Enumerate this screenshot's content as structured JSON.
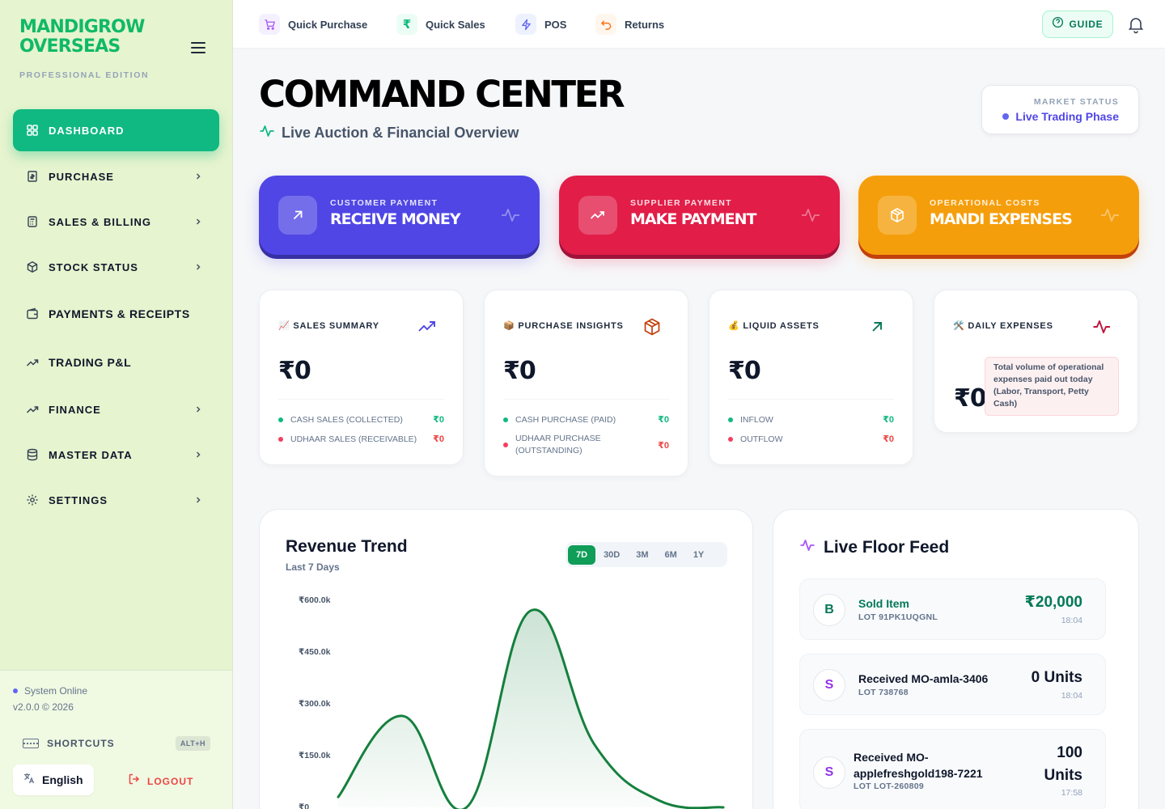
{
  "brand": {
    "line1": "MANDIGROW",
    "line2": "OVERSEAS",
    "edition": "PROFESSIONAL EDITION"
  },
  "sidebar": {
    "items": [
      {
        "label": "DASHBOARD",
        "icon": "grid-icon"
      },
      {
        "label": "PURCHASE",
        "icon": "receipt-icon"
      },
      {
        "label": "SALES & BILLING",
        "icon": "calculator-icon"
      },
      {
        "label": "STOCK STATUS",
        "icon": "box-icon"
      },
      {
        "label": "PAYMENTS & RECEIPTS",
        "icon": "wallet-icon"
      },
      {
        "label": "TRADING P&L",
        "icon": "trend-icon"
      },
      {
        "label": "FINANCE",
        "icon": "trend-icon"
      },
      {
        "label": "MASTER DATA",
        "icon": "database-icon"
      },
      {
        "label": "SETTINGS",
        "icon": "gear-icon"
      }
    ],
    "status": "System Online",
    "version": "v2.0.0 © 2026",
    "shortcuts_label": "SHORTCUTS",
    "shortcuts_key": "ALT+H",
    "language": "English",
    "logout": "LOGOUT"
  },
  "topbar": {
    "quick_actions": [
      {
        "label": "Quick Purchase",
        "icon": "cart-icon",
        "color": "#a855f7"
      },
      {
        "label": "Quick Sales",
        "icon": "rupee-icon",
        "color": "#10b981"
      },
      {
        "label": "POS",
        "icon": "lightning-icon",
        "color": "#6366f1"
      },
      {
        "label": "Returns",
        "icon": "undo-icon",
        "color": "#f97316"
      }
    ],
    "guide": "GUIDE"
  },
  "header": {
    "title": "COMMAND CENTER",
    "subtitle": "Live Auction & Financial Overview",
    "market_label": "MARKET STATUS",
    "market_value": "Live Trading Phase"
  },
  "actions": [
    {
      "kicker": "CUSTOMER PAYMENT",
      "title": "RECEIVE MONEY",
      "icon": "arrow-up-right-icon",
      "color": "#4f46e5"
    },
    {
      "kicker": "SUPPLIER PAYMENT",
      "title": "MAKE PAYMENT",
      "icon": "trend-down-icon",
      "color": "#e11d48"
    },
    {
      "kicker": "OPERATIONAL COSTS",
      "title": "MANDI EXPENSES",
      "icon": "package-icon",
      "color": "#f59e0b"
    }
  ],
  "stats": {
    "sales": {
      "title": "📈 SALES SUMMARY",
      "value": "₹0",
      "rows": [
        {
          "label": "CASH SALES (COLLECTED)",
          "value": "₹0"
        },
        {
          "label": "UDHAAR SALES (RECEIVABLE)",
          "value": "₹0"
        }
      ]
    },
    "purchase": {
      "title": "📦 PURCHASE INSIGHTS",
      "value": "₹0",
      "rows": [
        {
          "label": "CASH PURCHASE (PAID)",
          "value": "₹0"
        },
        {
          "label": "UDHAAR PURCHASE",
          "label2": "(OUTSTANDING)",
          "value": "₹0"
        }
      ]
    },
    "liquid": {
      "title": "💰 LIQUID ASSETS",
      "value": "₹0",
      "rows": [
        {
          "label": "INFLOW",
          "value": "₹0"
        },
        {
          "label": "OUTFLOW",
          "value": "₹0"
        }
      ]
    },
    "expenses": {
      "title": "🛠️ DAILY EXPENSES",
      "value": "₹0",
      "note": "Total volume of operational expenses paid out today (Labor, Transport, Petty Cash)"
    }
  },
  "revenue": {
    "title": "Revenue Trend",
    "subtitle": "Last 7 Days",
    "ranges": [
      "7D",
      "30D",
      "3M",
      "6M",
      "1Y"
    ],
    "active_range": "7D"
  },
  "chart_data": {
    "type": "area",
    "ylim": [
      0,
      600000
    ],
    "yticks": [
      "₹600.0k",
      "₹450.0k",
      "₹300.0k",
      "₹150.0k",
      "₹0"
    ],
    "ytick_values": [
      600000,
      450000,
      300000,
      150000,
      0
    ],
    "series": [
      {
        "values": [
          30000,
          265000,
          0,
          570000,
          180000,
          20000,
          0
        ]
      }
    ],
    "line_color": "#15803d"
  },
  "feed": {
    "title": "Live Floor Feed",
    "items": [
      {
        "initial": "B",
        "name": "Sold Item",
        "lot": "LOT 91PK1UQGNL",
        "amount": "₹20,000",
        "time": "18:04",
        "color": "#047857"
      },
      {
        "initial": "S",
        "name": "Received MO-amla-3406",
        "lot": "LOT 738768",
        "amount": "0 Units",
        "time": "18:04",
        "color": "#9333ea"
      },
      {
        "initial": "S",
        "name": "Received MO-",
        "name2": "applefreshgold198-7221",
        "lot": "LOT LOT-260809",
        "amount": "100",
        "amount2": "Units",
        "time": "17:58",
        "color": "#9333ea"
      }
    ]
  }
}
